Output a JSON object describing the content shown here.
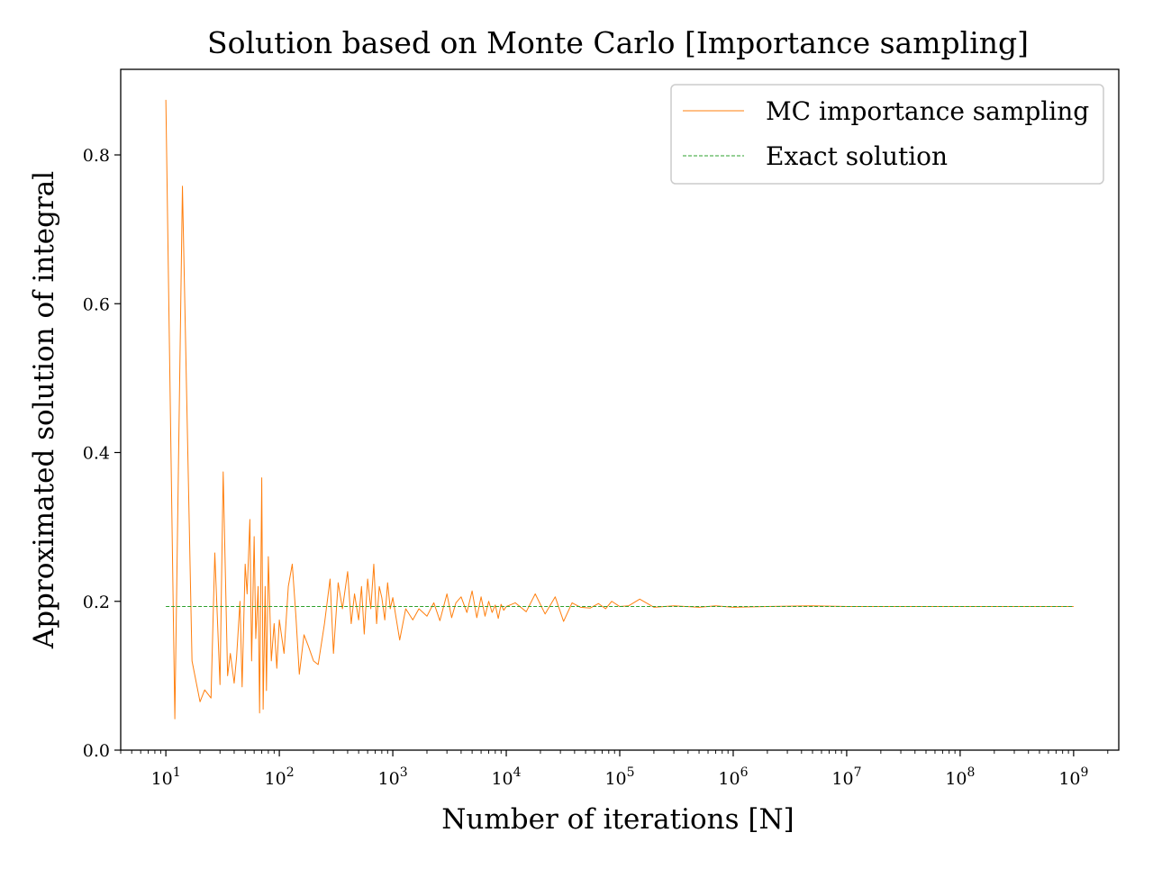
{
  "chart_data": {
    "type": "line",
    "title": "Solution based on Monte Carlo [Importance sampling]",
    "xlabel": "Number of iterations [N]",
    "ylabel": "Approximated solution of integral",
    "xscale": "log",
    "xlim": [
      4,
      2500000000
    ],
    "ylim": [
      0.0,
      0.915
    ],
    "x_ticks": [
      {
        "base": "10",
        "exp": "1"
      },
      {
        "base": "10",
        "exp": "2"
      },
      {
        "base": "10",
        "exp": "3"
      },
      {
        "base": "10",
        "exp": "4"
      },
      {
        "base": "10",
        "exp": "5"
      },
      {
        "base": "10",
        "exp": "6"
      },
      {
        "base": "10",
        "exp": "7"
      },
      {
        "base": "10",
        "exp": "8"
      },
      {
        "base": "10",
        "exp": "9"
      }
    ],
    "y_ticks": [
      "0.0",
      "0.2",
      "0.4",
      "0.6",
      "0.8"
    ],
    "grid": false,
    "legend_position": "top-right",
    "series": [
      {
        "name": "MC importance sampling",
        "color": "#ff7f0e",
        "style": "solid",
        "x": [
          10,
          12,
          14,
          17,
          20,
          22,
          25,
          27,
          30,
          32,
          35,
          37,
          40,
          42,
          45,
          47,
          50,
          52,
          55,
          57,
          60,
          62,
          65,
          67,
          70,
          72,
          75,
          77,
          80,
          85,
          90,
          95,
          100,
          110,
          120,
          130,
          140,
          150,
          165,
          180,
          200,
          220,
          250,
          280,
          300,
          330,
          360,
          400,
          430,
          460,
          500,
          530,
          560,
          600,
          640,
          680,
          720,
          760,
          800,
          850,
          900,
          950,
          1000,
          1150,
          1300,
          1500,
          1700,
          2000,
          2300,
          2600,
          3000,
          3300,
          3600,
          4000,
          4500,
          5000,
          5500,
          6000,
          6500,
          7000,
          7500,
          8000,
          8500,
          9000,
          9500,
          10000,
          12000,
          15000,
          18000,
          22000,
          27000,
          32000,
          38000,
          45000,
          55000,
          65000,
          75000,
          85000,
          100000,
          120000,
          150000,
          200000,
          300000,
          500000,
          700000,
          1000000,
          2000000,
          5000000,
          10000000,
          20000000,
          50000000,
          100000000,
          200000000,
          500000000,
          1000000000
        ],
        "y": [
          0.874,
          0.042,
          0.758,
          0.12,
          0.065,
          0.081,
          0.07,
          0.265,
          0.088,
          0.374,
          0.1,
          0.13,
          0.09,
          0.125,
          0.2,
          0.085,
          0.25,
          0.21,
          0.31,
          0.12,
          0.287,
          0.15,
          0.22,
          0.05,
          0.366,
          0.055,
          0.22,
          0.08,
          0.26,
          0.12,
          0.17,
          0.11,
          0.175,
          0.13,
          0.22,
          0.25,
          0.18,
          0.102,
          0.155,
          0.14,
          0.12,
          0.115,
          0.17,
          0.23,
          0.13,
          0.225,
          0.19,
          0.24,
          0.17,
          0.21,
          0.175,
          0.22,
          0.156,
          0.23,
          0.19,
          0.25,
          0.17,
          0.22,
          0.205,
          0.175,
          0.225,
          0.19,
          0.205,
          0.148,
          0.19,
          0.175,
          0.19,
          0.18,
          0.198,
          0.174,
          0.21,
          0.178,
          0.198,
          0.206,
          0.185,
          0.214,
          0.178,
          0.206,
          0.18,
          0.2,
          0.185,
          0.195,
          0.177,
          0.196,
          0.188,
          0.193,
          0.198,
          0.186,
          0.21,
          0.183,
          0.206,
          0.173,
          0.198,
          0.192,
          0.191,
          0.197,
          0.19,
          0.2,
          0.193,
          0.194,
          0.203,
          0.192,
          0.194,
          0.192,
          0.194,
          0.192,
          0.193,
          0.194,
          0.193,
          0.193,
          0.193,
          0.193,
          0.193,
          0.193,
          0.193
        ]
      },
      {
        "name": "Exact solution",
        "color": "#2ca02c",
        "style": "dashed",
        "x": [
          10,
          1000000000
        ],
        "y": [
          0.193,
          0.193
        ]
      }
    ]
  }
}
